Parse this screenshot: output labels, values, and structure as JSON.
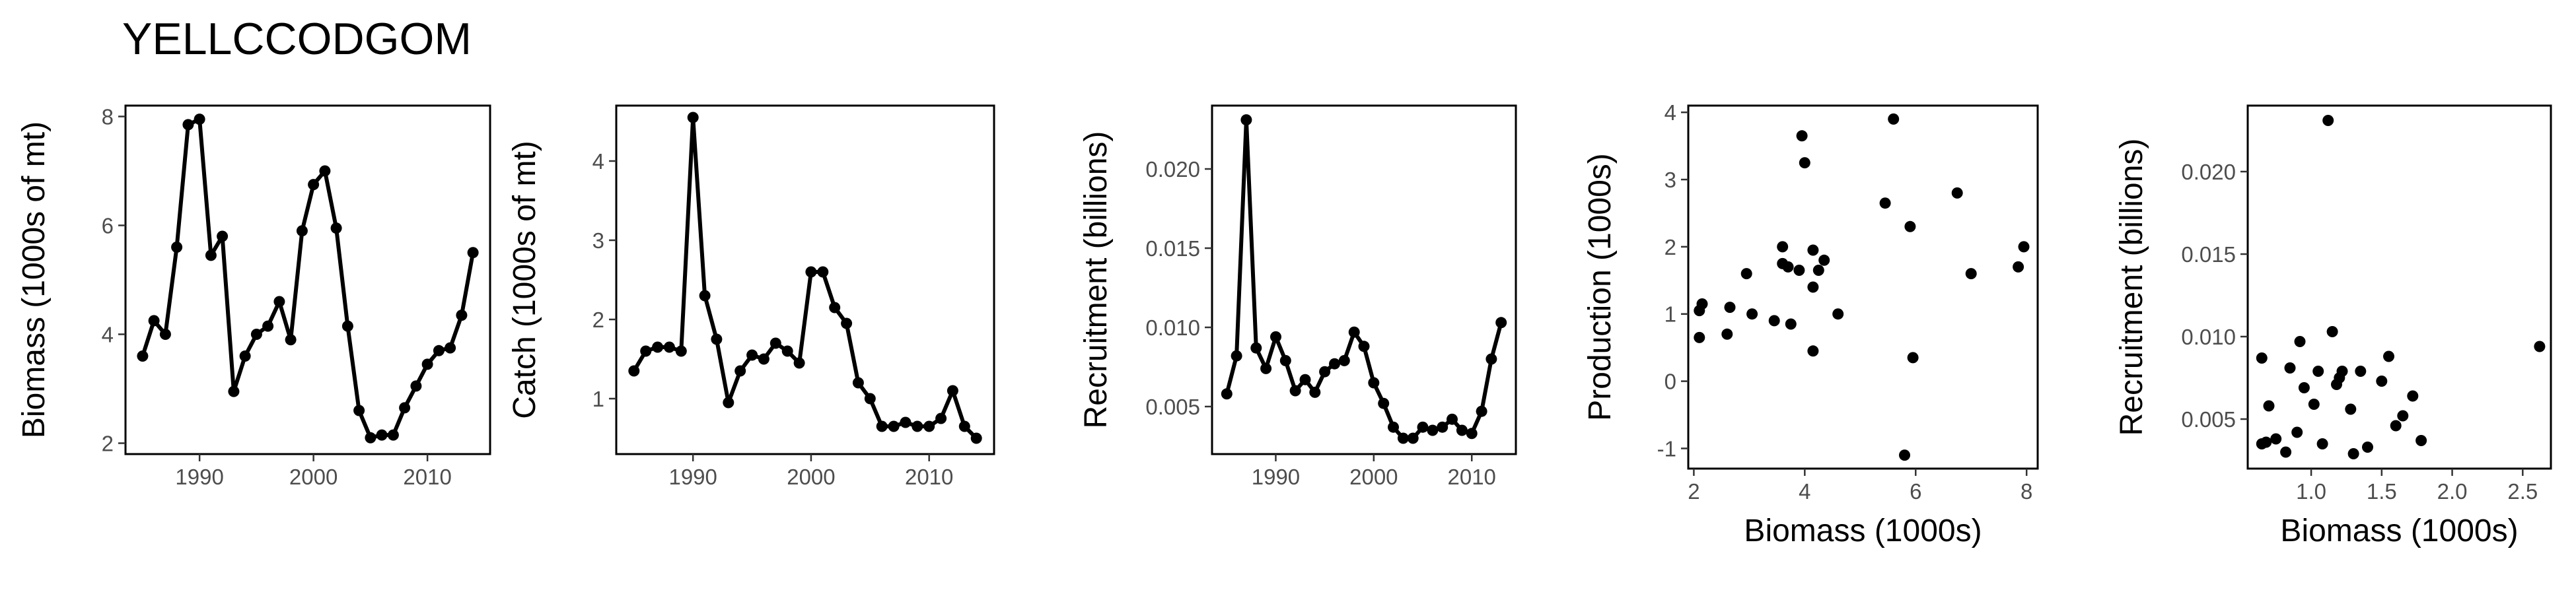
{
  "page": {
    "title": "YELLCCODGOM"
  },
  "chart_data": [
    {
      "id": "biomass",
      "type": "line",
      "xlabel": "",
      "ylabel": "Biomass (1000s of mt)",
      "xlim": [
        1983.5,
        2015.5
      ],
      "ylim": [
        1.8,
        8.2
      ],
      "xticks": [
        1990,
        2000,
        2010
      ],
      "yticks": [
        2,
        4,
        6,
        8
      ],
      "x": [
        1985,
        1986,
        1987,
        1988,
        1989,
        1990,
        1991,
        1992,
        1993,
        1994,
        1995,
        1996,
        1997,
        1998,
        1999,
        2000,
        2001,
        2002,
        2003,
        2004,
        2005,
        2006,
        2007,
        2008,
        2009,
        2010,
        2011,
        2012,
        2013,
        2014
      ],
      "y": [
        3.6,
        4.25,
        4.0,
        5.6,
        7.85,
        7.95,
        5.45,
        5.8,
        2.95,
        3.6,
        4.0,
        4.15,
        4.6,
        3.9,
        5.9,
        6.75,
        7.0,
        5.95,
        4.15,
        2.6,
        2.1,
        2.15,
        2.15,
        2.65,
        3.05,
        3.45,
        3.7,
        3.75,
        4.35,
        5.5
      ],
      "markers": true
    },
    {
      "id": "catch",
      "type": "line",
      "xlabel": "",
      "ylabel": "Catch (1000s of mt)",
      "xlim": [
        1983.5,
        2015.5
      ],
      "ylim": [
        0.3,
        4.7
      ],
      "xticks": [
        1990,
        2000,
        2010
      ],
      "yticks": [
        1,
        2,
        3,
        4
      ],
      "x": [
        1985,
        1986,
        1987,
        1988,
        1989,
        1990,
        1991,
        1992,
        1993,
        1994,
        1995,
        1996,
        1997,
        1998,
        1999,
        2000,
        2001,
        2002,
        2003,
        2004,
        2005,
        2006,
        2007,
        2008,
        2009,
        2010,
        2011,
        2012,
        2013,
        2014
      ],
      "y": [
        1.35,
        1.6,
        1.65,
        1.65,
        1.6,
        4.55,
        2.3,
        1.75,
        0.95,
        1.35,
        1.55,
        1.5,
        1.7,
        1.6,
        1.45,
        2.6,
        2.6,
        2.15,
        1.95,
        1.2,
        1.0,
        0.65,
        0.65,
        0.7,
        0.65,
        0.65,
        0.75,
        1.1,
        0.65,
        0.5
      ],
      "markers": true
    },
    {
      "id": "recruitment",
      "type": "line",
      "xlabel": "",
      "ylabel": "Recruitment (billions)",
      "xlim": [
        1983.5,
        2014.5
      ],
      "ylim": [
        0.002,
        0.024
      ],
      "xticks": [
        1990,
        2000,
        2010
      ],
      "yticks": [
        0.005,
        0.01,
        0.015,
        0.02
      ],
      "ytick_labels": [
        "0.005",
        "0.010",
        "0.015",
        "0.020"
      ],
      "x": [
        1985,
        1986,
        1987,
        1988,
        1989,
        1990,
        1991,
        1992,
        1993,
        1994,
        1995,
        1996,
        1997,
        1998,
        1999,
        2000,
        2001,
        2002,
        2003,
        2004,
        2005,
        2006,
        2007,
        2008,
        2009,
        2010,
        2011,
        2012,
        2013
      ],
      "y": [
        0.0058,
        0.0082,
        0.0231,
        0.0087,
        0.0074,
        0.0094,
        0.0079,
        0.006,
        0.0067,
        0.0059,
        0.0072,
        0.0077,
        0.0079,
        0.0097,
        0.0088,
        0.0065,
        0.0052,
        0.0037,
        0.003,
        0.003,
        0.0037,
        0.0035,
        0.0037,
        0.0042,
        0.0035,
        0.0033,
        0.0047,
        0.008,
        0.0103
      ],
      "markers": true
    },
    {
      "id": "production",
      "type": "scatter",
      "xlabel": "Biomass (1000s)",
      "ylabel": "Production (1000s)",
      "xlim": [
        1.9,
        8.2
      ],
      "ylim": [
        -1.3,
        4.1
      ],
      "xticks": [
        2,
        4,
        6,
        8
      ],
      "yticks": [
        -1,
        0,
        1,
        2,
        3,
        4
      ],
      "x": [
        2.1,
        2.1,
        2.15,
        2.6,
        2.65,
        2.95,
        3.05,
        3.45,
        3.6,
        3.6,
        3.7,
        3.75,
        3.9,
        3.95,
        4.0,
        4.15,
        4.15,
        4.15,
        4.25,
        4.35,
        4.6,
        5.45,
        5.6,
        5.8,
        5.9,
        5.95,
        6.75,
        7.0,
        7.85,
        7.95
      ],
      "y": [
        0.65,
        1.05,
        1.15,
        0.7,
        1.1,
        1.6,
        1.0,
        0.9,
        2.0,
        1.75,
        1.7,
        0.85,
        1.65,
        3.65,
        3.25,
        1.95,
        0.45,
        1.4,
        1.65,
        1.8,
        1.0,
        2.65,
        3.9,
        -1.1,
        2.3,
        0.35,
        2.8,
        1.6,
        1.7,
        2.0
      ]
    },
    {
      "id": "stock-recruit",
      "type": "scatter",
      "xlabel": "Biomass (1000s)",
      "ylabel": "Recruitment (billions)",
      "xlim": [
        0.55,
        2.7
      ],
      "ylim": [
        0.002,
        0.024
      ],
      "xticks": [
        1.0,
        1.5,
        2.0,
        2.5
      ],
      "xtick_labels": [
        "1.0",
        "1.5",
        "2.0",
        "2.5"
      ],
      "yticks": [
        0.005,
        0.01,
        0.015,
        0.02
      ],
      "ytick_labels": [
        "0.005",
        "0.010",
        "0.015",
        "0.020"
      ],
      "x": [
        0.65,
        0.65,
        0.68,
        0.7,
        0.75,
        0.82,
        0.85,
        0.9,
        0.92,
        0.95,
        1.02,
        1.05,
        1.08,
        1.12,
        1.15,
        1.18,
        1.2,
        1.22,
        1.28,
        1.3,
        1.35,
        1.4,
        1.5,
        1.55,
        1.6,
        1.65,
        1.72,
        1.78,
        2.62
      ],
      "y": [
        0.0035,
        0.0087,
        0.0036,
        0.0058,
        0.0038,
        0.003,
        0.0081,
        0.0042,
        0.0097,
        0.0069,
        0.0059,
        0.0079,
        0.0035,
        0.0231,
        0.0103,
        0.0071,
        0.0075,
        0.0079,
        0.0056,
        0.0029,
        0.0079,
        0.0033,
        0.0073,
        0.0088,
        0.0046,
        0.0052,
        0.0064,
        0.0037,
        0.0094
      ]
    }
  ]
}
